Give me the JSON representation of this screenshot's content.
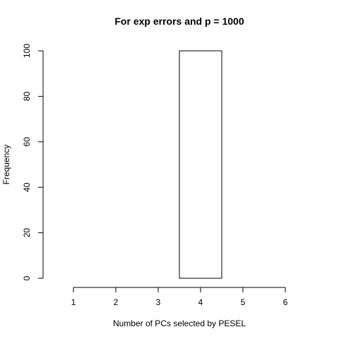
{
  "chart_data": {
    "type": "bar",
    "title": "For exp errors and p = 1000",
    "xlabel": "Number of PCs selected by PESEL",
    "ylabel": "Frequency",
    "x_ticks": [
      1,
      2,
      3,
      4,
      5,
      6
    ],
    "y_ticks": [
      0,
      20,
      40,
      60,
      80,
      100
    ],
    "xlim": [
      0.5,
      6.5
    ],
    "ylim": [
      0,
      100
    ],
    "categories": [
      1,
      2,
      3,
      4,
      5,
      6
    ],
    "values": [
      0,
      0,
      0,
      100,
      0,
      0
    ],
    "bar_width": 1,
    "grid": false,
    "colors": {
      "bar_fill": "#ffffff",
      "bar_stroke": "#000000",
      "axis": "#000000"
    }
  }
}
